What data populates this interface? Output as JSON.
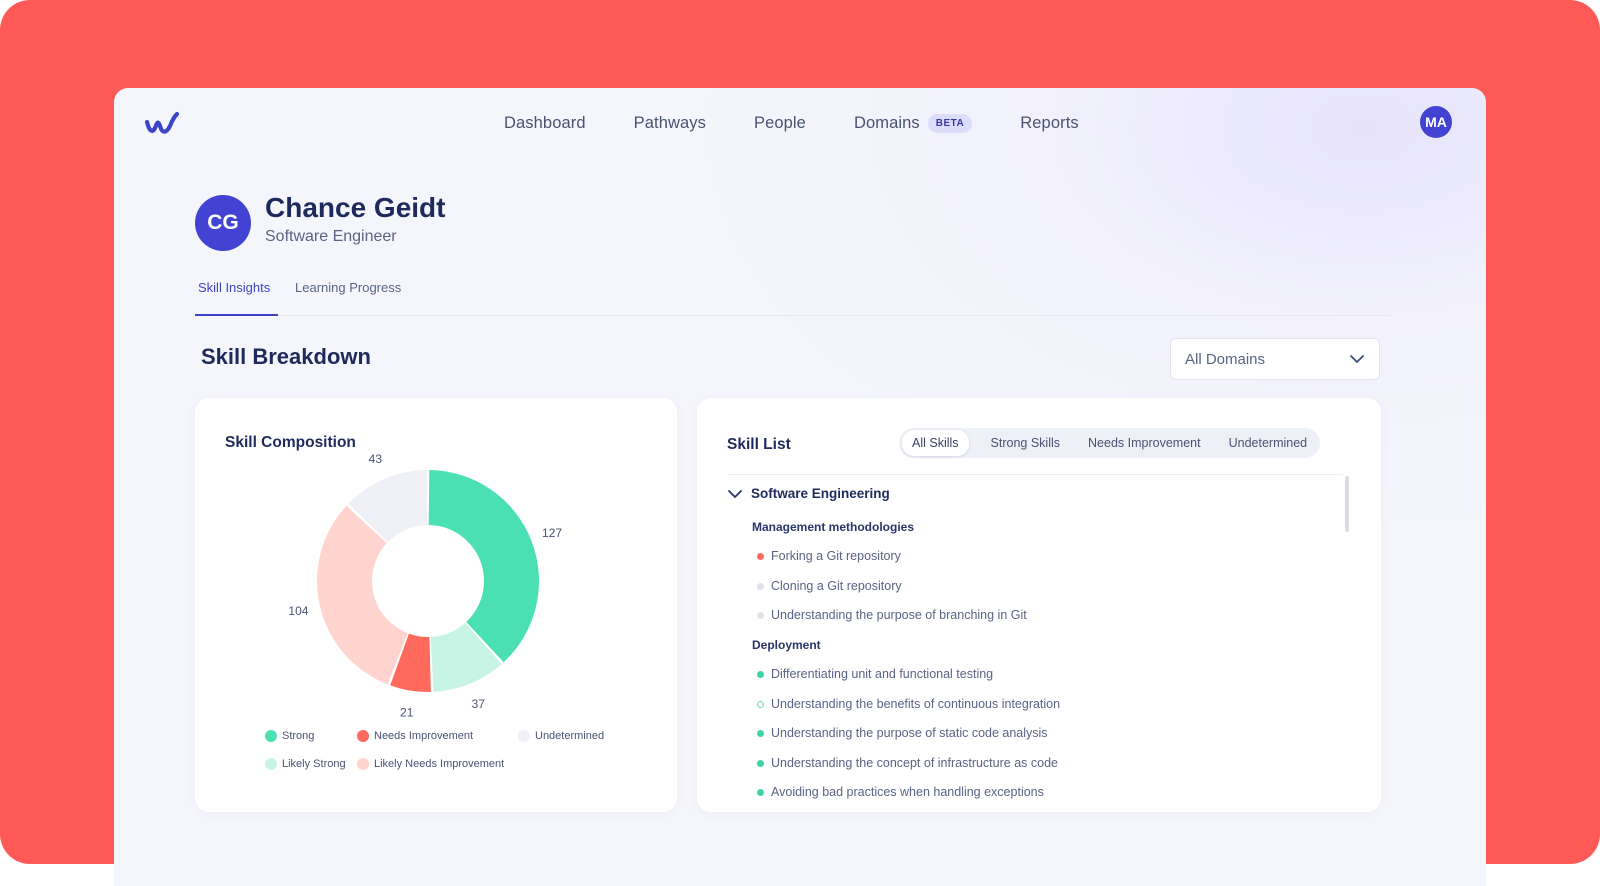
{
  "colors": {
    "backdrop": "#ff5a57",
    "accent": "#3e44c9",
    "strong": "#4be0b4",
    "needs_improvement": "#ff6a5c",
    "undetermined": "#eff0f5",
    "likely_strong": "#c8f4e5",
    "likely_needs_improvement": "#ffd4cf"
  },
  "nav": {
    "logo_icon": "wave-logo-icon",
    "links": [
      "Dashboard",
      "Pathways",
      "People",
      "Domains",
      "Reports"
    ],
    "beta_badge": "BETA",
    "user_initials": "MA"
  },
  "profile": {
    "initials": "CG",
    "name": "Chance Geidt",
    "role": "Software Engineer"
  },
  "tabs": [
    {
      "label": "Skill Insights",
      "active": true
    },
    {
      "label": "Learning Progress",
      "active": false
    }
  ],
  "section_title": "Skill Breakdown",
  "domain_select": {
    "value": "All Domains",
    "icon": "chevron-down-icon"
  },
  "composition": {
    "title": "Skill Composition",
    "legend": [
      "Strong",
      "Needs Improvement",
      "Undetermined",
      "Likely Strong",
      "Likely Needs Improvement"
    ]
  },
  "chart_data": {
    "type": "pie",
    "donut": true,
    "title": "Skill Composition",
    "labels": [
      "Strong",
      "Likely Strong",
      "Needs Improvement",
      "Likely Needs Improvement",
      "Undetermined"
    ],
    "values": [
      127,
      37,
      21,
      104,
      43
    ],
    "colors": [
      "#4be0b4",
      "#c8f4e5",
      "#ff6a5c",
      "#ffd4cf",
      "#eff0f5"
    ],
    "legend_position": "bottom"
  },
  "skill_list": {
    "title": "Skill List",
    "filters": [
      "All Skills",
      "Strong Skills",
      "Needs Improvement",
      "Undetermined"
    ],
    "active_filter": "All Skills",
    "group": "Software Engineering",
    "subgroups": [
      {
        "title": "Management methodologies",
        "skills": [
          {
            "label": "Forking a Git repository",
            "status": "needs-improvement"
          },
          {
            "label": "Cloning a Git repository",
            "status": "undetermined"
          },
          {
            "label": "Understanding the purpose of branching in Git",
            "status": "undetermined"
          }
        ]
      },
      {
        "title": "Deployment",
        "skills": [
          {
            "label": "Differentiating unit and functional testing",
            "status": "strong"
          },
          {
            "label": "Understanding the benefits of continuous integration",
            "status": "likely-strong"
          },
          {
            "label": "Understanding the purpose of static code analysis",
            "status": "strong"
          },
          {
            "label": "Understanding the concept of infrastructure as code",
            "status": "strong"
          },
          {
            "label": "Avoiding bad practices when handling exceptions",
            "status": "strong"
          }
        ]
      }
    ]
  }
}
